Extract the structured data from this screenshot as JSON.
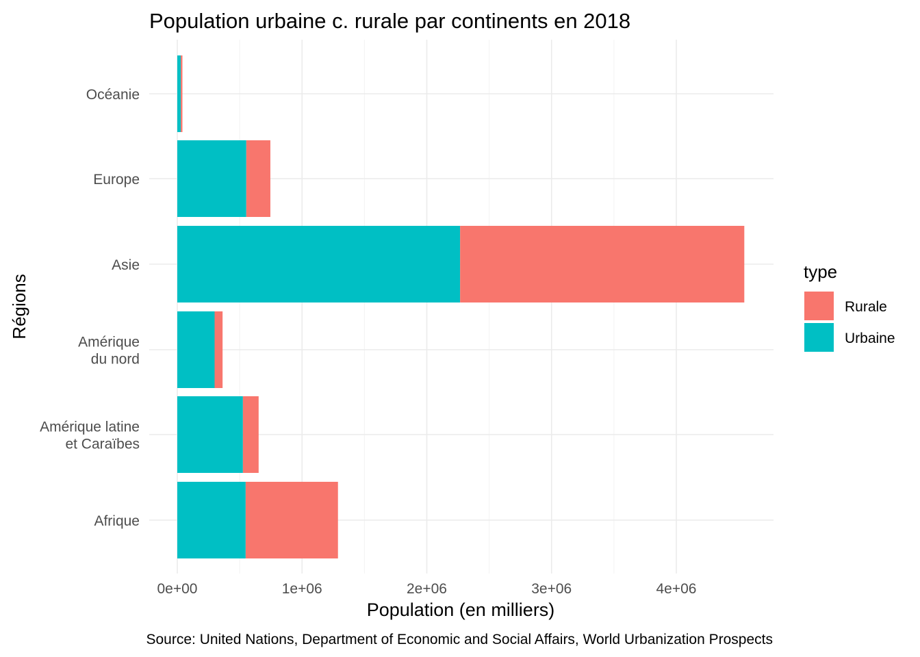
{
  "chart_data": {
    "type": "bar",
    "orientation": "horizontal",
    "stacked": true,
    "title": "Population urbaine c. rurale par continents en 2018",
    "xlabel": "Population (en milliers)",
    "ylabel": "Régions",
    "caption": "Source: United Nations, Department of Economic and Social Affairs, World Urbanization Prospects",
    "categories": [
      [
        "Afrique"
      ],
      [
        "Amérique latine",
        "et Caraïbes"
      ],
      [
        "Amérique",
        "du nord"
      ],
      [
        "Asie"
      ],
      [
        "Europe"
      ],
      [
        "Océanie"
      ]
    ],
    "series": [
      {
        "name": "Urbaine",
        "color": "#00BFC4",
        "values": [
          548000,
          526000,
          299000,
          2267000,
          553000,
          28000
        ]
      },
      {
        "name": "Rurale",
        "color": "#F8766D",
        "values": [
          740000,
          126000,
          64000,
          2278000,
          193000,
          13000
        ]
      }
    ],
    "xlim": [
      0,
      4700000
    ],
    "xticks": [
      0,
      1000000,
      2000000,
      3000000,
      4000000
    ],
    "xtick_labels": [
      "0e+00",
      "1e+06",
      "2e+06",
      "3e+06",
      "4e+06"
    ],
    "grid": true,
    "legend": {
      "title": "type",
      "position": "right",
      "entries": [
        {
          "label": "Rurale",
          "color": "#F8766D"
        },
        {
          "label": "Urbaine",
          "color": "#00BFC4"
        }
      ]
    }
  }
}
